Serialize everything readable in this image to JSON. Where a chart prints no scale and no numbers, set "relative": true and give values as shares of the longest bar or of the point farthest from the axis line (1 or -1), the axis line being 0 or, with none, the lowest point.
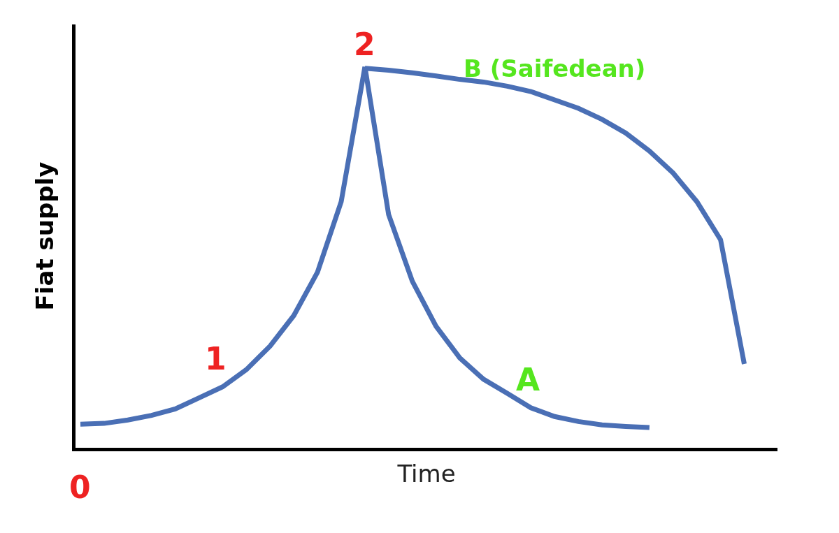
{
  "chart_data": {
    "type": "line",
    "xlabel": "Time",
    "ylabel": "Fiat supply",
    "relative": true,
    "legend": false,
    "marker": "none",
    "line_style": "solid",
    "categories": [
      null,
      null,
      null,
      null,
      null,
      null,
      null,
      null,
      null,
      null,
      null,
      null,
      null,
      null,
      null,
      null,
      null,
      null,
      null,
      null,
      null,
      null,
      null,
      null,
      null,
      null,
      null,
      null,
      null
    ],
    "series": [
      {
        "name": "1",
        "color": "#4a6fb5",
        "values": [
          0.062,
          0.064,
          0.073,
          0.085,
          0.102,
          0.131,
          0.16,
          0.205,
          0.267,
          0.347,
          0.461,
          0.646,
          1.0,
          null,
          null,
          null,
          null,
          null,
          null,
          null,
          null,
          null,
          null,
          null,
          null,
          null,
          null,
          null,
          null
        ]
      },
      {
        "name": "A",
        "color": "#4a6fb5",
        "values": [
          null,
          null,
          null,
          null,
          null,
          null,
          null,
          null,
          null,
          null,
          null,
          null,
          1.0,
          0.612,
          0.437,
          0.319,
          0.236,
          0.18,
          0.143,
          0.105,
          0.082,
          0.069,
          0.06,
          0.056,
          0.053,
          null,
          null,
          null,
          null
        ]
      },
      {
        "name": "B (Saifedean)",
        "color": "#4a6fb5",
        "values": [
          null,
          null,
          null,
          null,
          null,
          null,
          null,
          null,
          null,
          null,
          null,
          null,
          0.996,
          0.991,
          0.984,
          0.976,
          0.967,
          0.96,
          0.949,
          0.935,
          0.913,
          0.891,
          0.862,
          0.826,
          0.779,
          0.721,
          0.646,
          0.546,
          0.22
        ]
      }
    ],
    "annotations": [
      "0",
      "2"
    ]
  }
}
